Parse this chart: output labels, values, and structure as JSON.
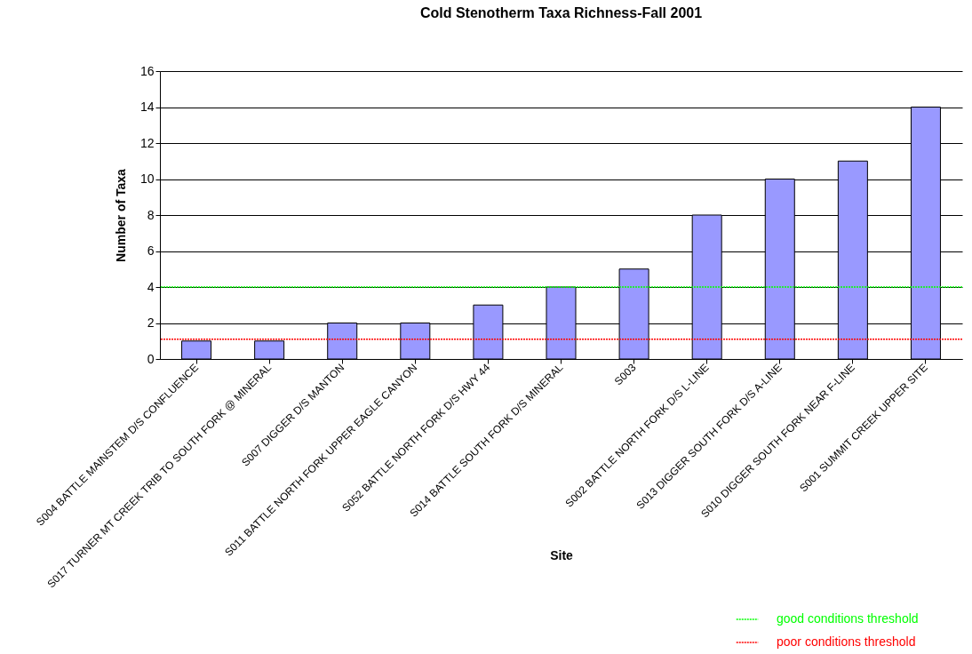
{
  "chart_data": {
    "type": "bar",
    "title": "Cold Stenotherm Taxa Richness-Fall 2001",
    "xlabel": "Site",
    "ylabel": "Number of Taxa",
    "categories": [
      "S004 BATTLE MAINSTEM D/S CONFLUENCE",
      "S017 TURNER MT CREEK TRIB TO SOUTH FORK @ MINERAL",
      "S007 DIGGER D/S MANTON",
      "S011 BATTLE NORTH FORK UPPER EAGLE CANYON",
      "S052 BATTLE NORTH FORK D/S HWY 44",
      "S014 BATTLE SOUTH FORK D/S MINERAL",
      "S003",
      "S002 BATTLE NORTH FORK D/S L-LINE",
      "S013 DIGGER SOUTH FORK D/S A-LINE",
      "S010 DIGGER SOUTH FORK NEAR F-LINE",
      "S001 SUMMIT CREEK UPPER SITE"
    ],
    "values": [
      1,
      1,
      2,
      2,
      3,
      4,
      5,
      8,
      10,
      11,
      14
    ],
    "color": "#9999ff",
    "ylim": [
      0,
      16
    ],
    "yticks": [
      0,
      2,
      4,
      6,
      8,
      10,
      12,
      14,
      16
    ],
    "grid": "y",
    "ref_lines": [
      {
        "axis": "y",
        "value": 4,
        "label": "good conditions threshold",
        "color": "#00ff00",
        "line_style": "dotted"
      },
      {
        "axis": "y",
        "value": 1.1,
        "label": "poor conditions threshold",
        "color": "#ff0000",
        "line_style": "dotted"
      }
    ],
    "legend": "bottom right"
  }
}
